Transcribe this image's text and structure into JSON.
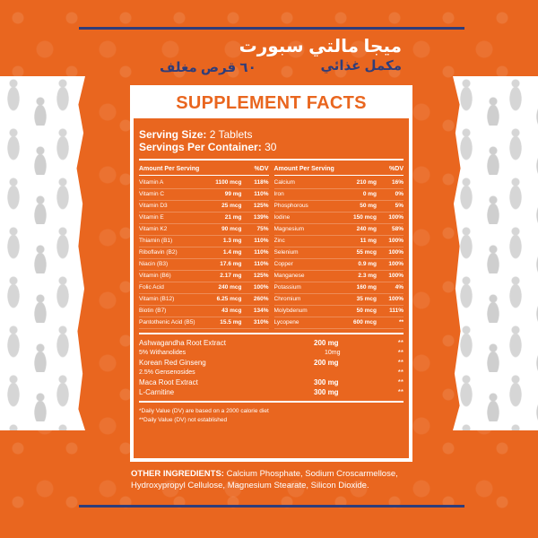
{
  "header": {
    "brand_name": "ميجا مالتي سبورت",
    "brand_subtitle": "مكمل غذائي",
    "pack_label": "٦٠ قرص مغلف"
  },
  "panel": {
    "title": "SUPPLEMENT FACTS",
    "serving_size_label": "Serving Size:",
    "serving_size_value": "2 Tablets",
    "servings_per_container_label": "Servings Per Container:",
    "servings_per_container_value": "30",
    "amount_header": "Amount Per Serving",
    "dv_header": "%DV",
    "left_nutrients": [
      {
        "name": "Vitamin A",
        "amount": "1100 mcg",
        "dv": "118%"
      },
      {
        "name": "Vitamin C",
        "amount": "99 mg",
        "dv": "110%"
      },
      {
        "name": "Vitamin D3",
        "amount": "25 mcg",
        "dv": "125%"
      },
      {
        "name": "Vitamin E",
        "amount": "21 mg",
        "dv": "139%"
      },
      {
        "name": "Vitamin K2",
        "amount": "90 mcg",
        "dv": "75%"
      },
      {
        "name": "Thiamin (B1)",
        "amount": "1.3 mg",
        "dv": "110%"
      },
      {
        "name": "Riboflavin (B2)",
        "amount": "1.4 mg",
        "dv": "110%"
      },
      {
        "name": "Niacin (B3)",
        "amount": "17.6 mg",
        "dv": "110%"
      },
      {
        "name": "Vitamin (B6)",
        "amount": "2.17 mg",
        "dv": "125%"
      },
      {
        "name": "Folic Acid",
        "amount": "240 mcg",
        "dv": "100%"
      },
      {
        "name": "Vitamin (B12)",
        "amount": "6.25 mcg",
        "dv": "260%"
      },
      {
        "name": "Biotin (B7)",
        "amount": "43 mcg",
        "dv": "134%"
      },
      {
        "name": "Pantothenic Acid (B5)",
        "amount": "15.5 mg",
        "dv": "310%"
      }
    ],
    "right_nutrients": [
      {
        "name": "Calcium",
        "amount": "210 mg",
        "dv": "16%"
      },
      {
        "name": "Iron",
        "amount": "0 mg",
        "dv": "0%"
      },
      {
        "name": "Phosphorous",
        "amount": "50 mg",
        "dv": "5%"
      },
      {
        "name": "Iodine",
        "amount": "150 mcg",
        "dv": "100%"
      },
      {
        "name": "Magnesium",
        "amount": "240 mg",
        "dv": "58%"
      },
      {
        "name": "Zinc",
        "amount": "11 mg",
        "dv": "100%"
      },
      {
        "name": "Selenium",
        "amount": "55 mcg",
        "dv": "100%"
      },
      {
        "name": "Copper",
        "amount": "0.9 mg",
        "dv": "100%"
      },
      {
        "name": "Manganese",
        "amount": "2.3 mg",
        "dv": "100%"
      },
      {
        "name": "Potassium",
        "amount": "160 mg",
        "dv": "4%"
      },
      {
        "name": "Chromium",
        "amount": "35 mcg",
        "dv": "100%"
      },
      {
        "name": "Molybdenum",
        "amount": "50 mcg",
        "dv": "111%"
      },
      {
        "name": "Lycopene",
        "amount": "600 mcg",
        "dv": "**"
      }
    ],
    "extracts": [
      {
        "name": "Ashwagandha Root Extract",
        "amount": "200 mg",
        "dv": "**",
        "sub": false
      },
      {
        "name": "5% Withanolides",
        "amount": "10mg",
        "dv": "**",
        "sub": true
      },
      {
        "name": "Korean Red Ginseng",
        "amount": "200 mg",
        "dv": "**",
        "sub": false
      },
      {
        "name": "2.5% Gensenosides",
        "amount": "",
        "dv": "**",
        "sub": true
      },
      {
        "name": "Maca Root Extract",
        "amount": "300 mg",
        "dv": "**",
        "sub": false
      },
      {
        "name": "L-Carnitine",
        "amount": "300 mg",
        "dv": "**",
        "sub": false
      }
    ],
    "note_1": "*Daily Value (DV) are based on a 2000 calorie diet",
    "note_2": "**Daily Value (DV) not established"
  },
  "other_ingredients": {
    "label": "OTHER INGREDIENTS:",
    "text": "Calcium Phosphate, Sodium Croscarmellose, Hydroxypropyl Cellulose, Magnesium Stearate, Silicon Dioxide."
  },
  "colors": {
    "background": "#e9661f",
    "accent": "#2f3d7a",
    "panel_text": "#ffffff"
  }
}
